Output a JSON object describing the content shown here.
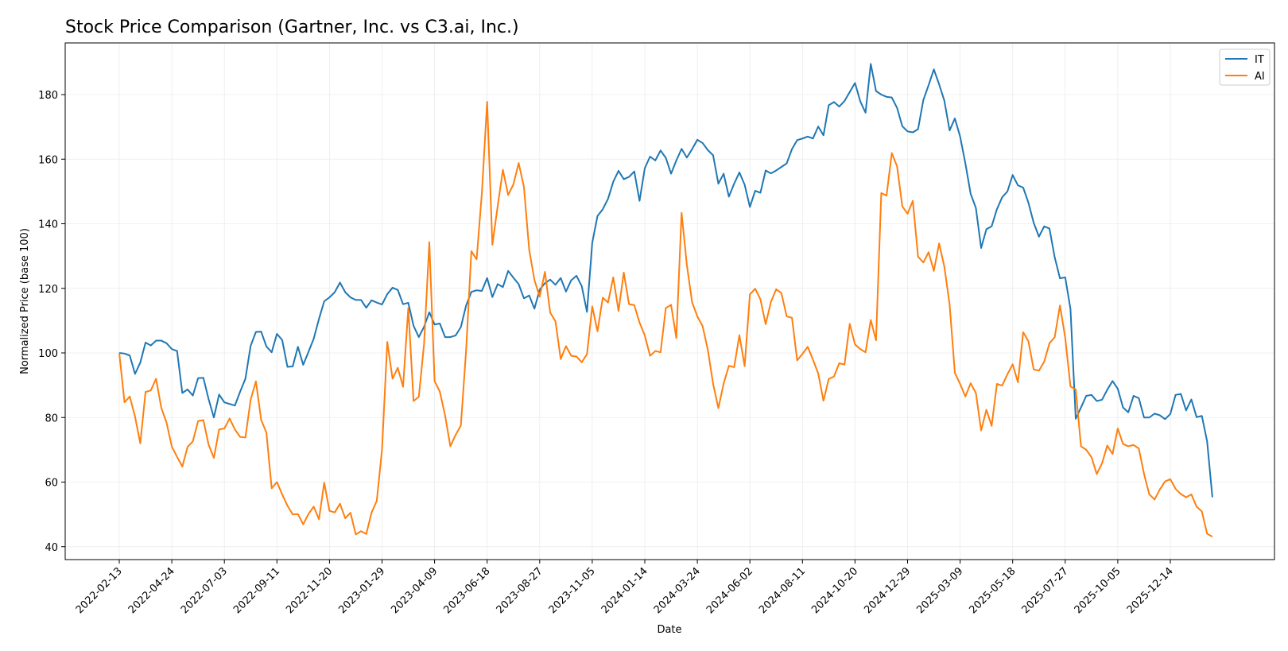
{
  "chart_data": {
    "type": "line",
    "title": "Stock Price Comparison (Gartner, Inc. vs C3.ai, Inc.)",
    "xlabel": "Date",
    "ylabel": "Normalized Price (base 100)",
    "ylim": [
      36,
      196
    ],
    "yticks": [
      40,
      60,
      80,
      100,
      120,
      140,
      160,
      180
    ],
    "xtick_labels": [
      "2022-02-13",
      "2022-04-24",
      "2022-07-03",
      "2022-09-11",
      "2022-11-20",
      "2023-01-29",
      "2023-04-09",
      "2023-06-18",
      "2023-08-27",
      "2023-11-05",
      "2024-01-14",
      "2024-03-24",
      "2024-06-02",
      "2024-08-11",
      "2024-10-20",
      "2024-12-29",
      "2025-03-09",
      "2025-05-18",
      "2025-07-27",
      "2025-10-05",
      "2025-12-14"
    ],
    "grid": true,
    "legend_position": "top-right",
    "week_step_days": 7,
    "x_start": "2022-02-13",
    "series": [
      {
        "name": "IT",
        "color": "#1f77b4",
        "values": [
          100,
          99.8,
          99.2,
          93.5,
          97,
          103.2,
          102.3,
          103.8,
          103.8,
          103,
          101.2,
          100.6,
          87.6,
          88.7,
          86.8,
          92.2,
          92.3,
          85.7,
          80,
          87.1,
          84.7,
          84.2,
          83.7,
          88,
          92,
          102.2,
          106.5,
          106.6,
          102,
          100.2,
          105.9,
          104,
          95.7,
          95.8,
          101.9,
          96.3,
          100.3,
          104.4,
          110.5,
          116,
          117.2,
          118.8,
          121.8,
          118.8,
          117.2,
          116.4,
          116.4,
          114,
          116.3,
          115.6,
          115,
          118.2,
          120.2,
          119.5,
          115.1,
          115.5,
          108.4,
          104.9,
          108.1,
          112.6,
          108.8,
          109.1,
          104.9,
          104.9,
          105.4,
          108,
          114.7,
          118.9,
          119.4,
          119.2,
          123.2,
          117.3,
          121.3,
          120.4,
          125.4,
          123.3,
          121.3,
          116.9,
          117.8,
          113.7,
          119.6,
          121.6,
          122.7,
          121.1,
          123.2,
          119,
          122.5,
          123.9,
          120.7,
          112.7,
          134.1,
          142.4,
          144.5,
          147.7,
          153,
          156.4,
          153.8,
          154.5,
          156.2,
          147.1,
          157.2,
          160.8,
          159.6,
          162.7,
          160.4,
          155.5,
          159.6,
          163.2,
          160.5,
          163.1,
          166,
          165,
          162.8,
          161.2,
          152.4,
          155.5,
          148.4,
          152.4,
          155.9,
          152.1,
          145.2,
          150.2,
          149.6,
          156.5,
          155.6,
          156.5,
          157.6,
          158.7,
          163.1,
          165.9,
          166.4,
          167,
          166.4,
          170.1,
          167.4,
          176.7,
          177.7,
          176.3,
          178,
          180.8,
          183.6,
          177.9,
          174.4,
          189.5,
          181.1,
          180,
          179.3,
          179.1,
          175.9,
          170.2,
          168.6,
          168.3,
          169.3,
          178.3,
          182.9,
          187.8,
          183.2,
          178.1,
          168.9,
          172.6,
          167,
          158.7,
          149.3,
          144.9,
          132.5,
          138.3,
          139.2,
          144.5,
          148.2,
          150,
          155.1,
          151.9,
          151.2,
          146.5,
          140.3,
          136,
          139.2,
          138.5,
          129.6,
          123.1,
          123.4,
          113.6,
          79.6,
          83.1,
          86.7,
          87,
          85.1,
          85.5,
          88.6,
          91.3,
          88.9,
          83.1,
          81.6,
          86.7,
          86,
          80,
          80,
          81.2,
          80.7,
          79.5,
          81.1,
          87,
          87.3,
          82.2,
          85.6,
          80.1,
          80.5,
          72.6,
          55.3
        ]
      },
      {
        "name": "AI",
        "color": "#ff7f0e",
        "values": [
          100,
          84.7,
          86.5,
          80.3,
          72,
          87.9,
          88.4,
          92,
          83,
          78.4,
          71,
          67.8,
          64.8,
          70.9,
          72.6,
          78.9,
          79.2,
          71.6,
          67.5,
          76.3,
          76.6,
          79.7,
          76.3,
          74,
          73.8,
          85.5,
          91.2,
          79.3,
          75.3,
          58.1,
          60,
          56.2,
          52.7,
          50,
          50.1,
          46.9,
          50.1,
          52.4,
          48.5,
          59.8,
          51.1,
          50.6,
          53.3,
          48.8,
          50.5,
          43.8,
          44.8,
          43.9,
          50.5,
          54.2,
          70.1,
          103.4,
          92,
          95.4,
          89.5,
          113.9,
          85.1,
          86.4,
          102.8,
          134.3,
          91.3,
          88,
          80.6,
          71.1,
          74.6,
          77.5,
          100.8,
          131.5,
          129,
          149.5,
          177.8,
          133.5,
          145.4,
          156.7,
          148.9,
          152.2,
          158.8,
          151.4,
          132,
          122.6,
          117.4,
          125.1,
          112.5,
          109.8,
          98.1,
          102.1,
          99.1,
          98.9,
          97.1,
          99.6,
          114.4,
          106.7,
          117.1,
          115.6,
          123.4,
          113,
          124.9,
          115.1,
          114.8,
          109.4,
          105.4,
          99.1,
          100.6,
          100.2,
          113.9,
          114.9,
          104.6,
          143.4,
          127.3,
          115.7,
          111.3,
          108.3,
          100.9,
          90.4,
          82.9,
          90.5,
          96,
          95.6,
          105.5,
          95.9,
          118.1,
          119.9,
          116.6,
          108.9,
          115.8,
          119.7,
          118.5,
          111.3,
          110.9,
          97.7,
          99.7,
          101.9,
          97.9,
          93.6,
          85.2,
          91.9,
          92.7,
          96.8,
          96.4,
          109,
          102.6,
          101.2,
          100.2,
          110.2,
          103.9,
          149.5,
          148.7,
          161.9,
          157.8,
          145.4,
          143.1,
          147.1,
          129.8,
          128,
          131.2,
          125.4,
          133.9,
          126.7,
          115,
          93.8,
          90.4,
          86.5,
          90.6,
          87.6,
          76,
          82.4,
          77.4,
          90.4,
          89.9,
          93.4,
          96.5,
          90.9,
          106.4,
          103.6,
          94.9,
          94.5,
          97.3,
          103,
          104.9,
          114.7,
          104.7,
          89.6,
          88.7,
          71.1,
          70,
          67.7,
          62.5,
          65.8,
          71.3,
          68.7,
          76.6,
          71.8,
          71.1,
          71.5,
          70.4,
          62.5,
          56.2,
          54.6,
          57.7,
          60.2,
          60.9,
          57.9,
          56.3,
          55.3,
          56.2,
          52.4,
          50.9,
          44,
          43.1
        ]
      }
    ]
  }
}
